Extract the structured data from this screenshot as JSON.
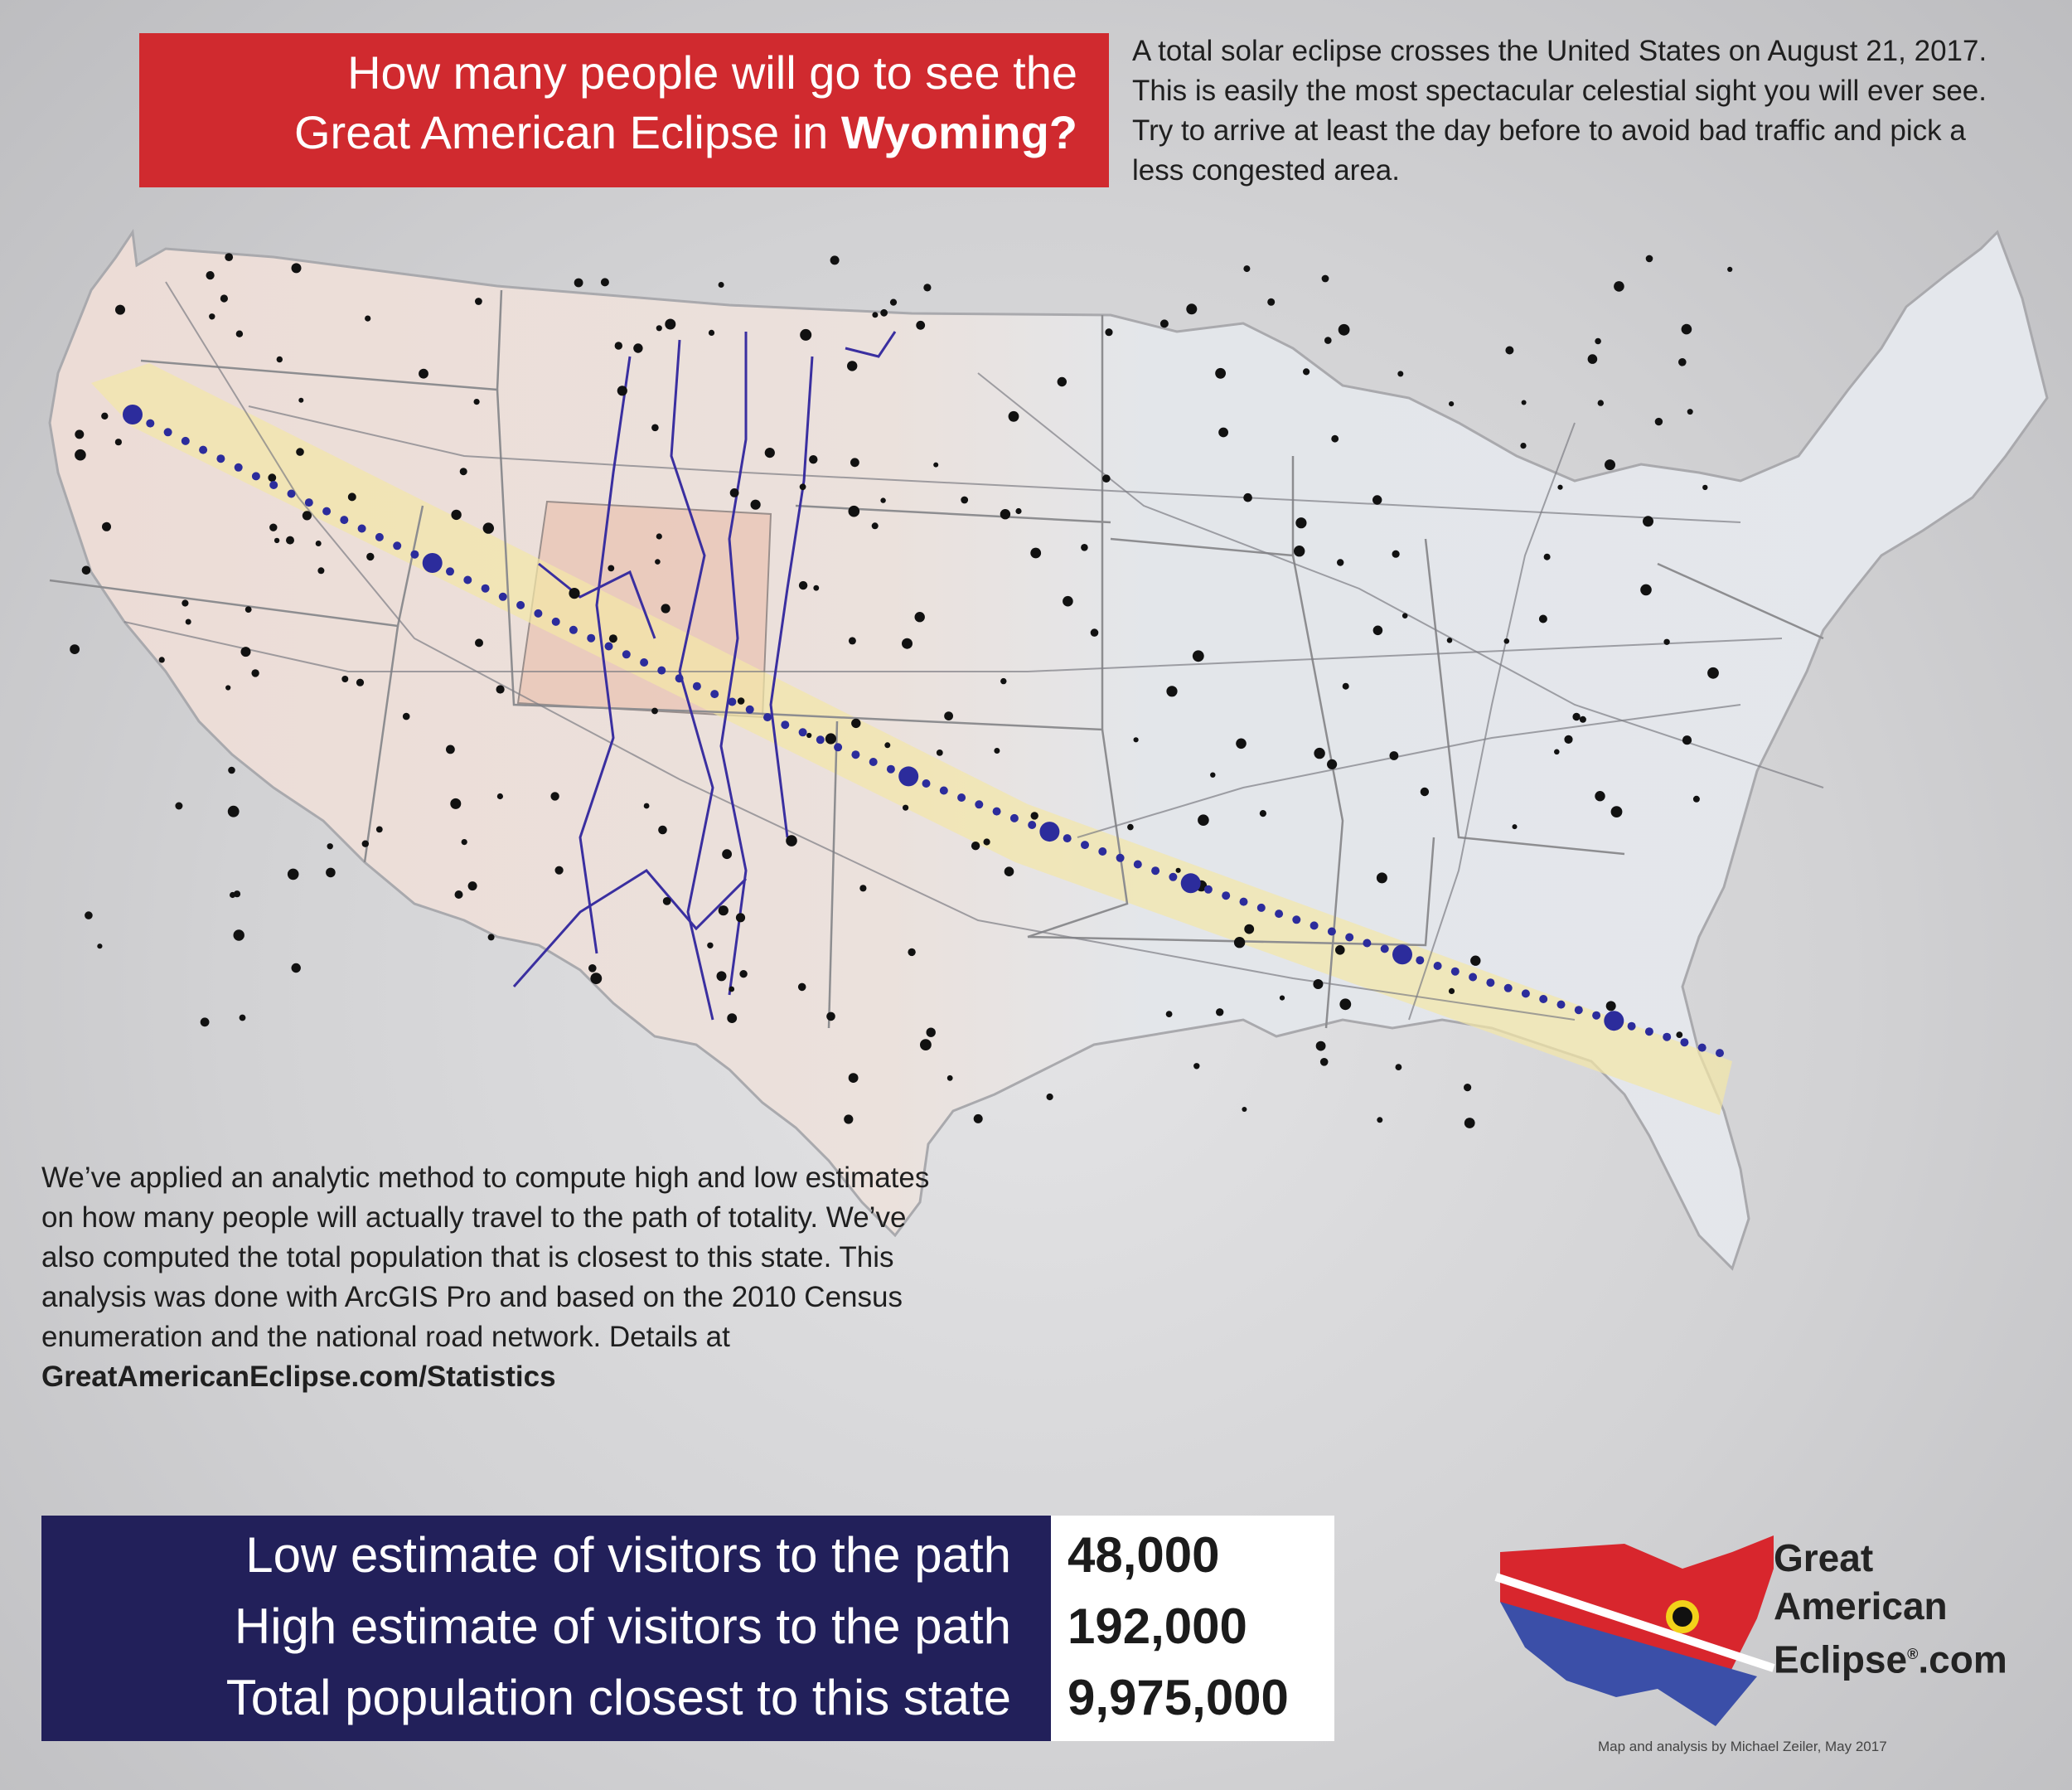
{
  "header": {
    "title_line1": "How many people will go to see the",
    "title_line2_prefix": "Great American Eclipse in ",
    "title_state": "Wyoming?"
  },
  "intro_text": "A total solar eclipse crosses the United States on August 21, 2017. This is easily the most spectacular celestial sight you will ever see. Try to arrive at least the day before to avoid bad traffic and pick a less congested area.",
  "method": {
    "text": "We’ve applied an analytic method to compute high and low estimates on how many people will actually travel to the path of totality. We’ve also computed the total population that is closest to this state. This analysis was done with ArcGIS Pro and based on the 2010 Census enumeration and the national road network. Details at ",
    "link": "GreatAmericanEclipse.com/Statistics"
  },
  "stats": [
    {
      "label": "Low estimate of visitors to the path",
      "value": "48,000"
    },
    {
      "label": "High estimate of visitors to the path",
      "value": "192,000"
    },
    {
      "label": "Total population closest to this state",
      "value": "9,975,000"
    }
  ],
  "logo": {
    "line1": "Great",
    "line2": "American",
    "line3": "Eclipse",
    "registered": "®",
    "suffix": ".com"
  },
  "credit": "Map and analysis by Michael Zeiler, May 2017",
  "colors": {
    "title_bg": "#d02a2f",
    "stats_bg": "#22205a",
    "eclipse_path": "#f3e7a6",
    "highlight_state": "#e9b9a6",
    "route_lines": "#3a2fa0",
    "path_dots": "#2c2c9c"
  }
}
